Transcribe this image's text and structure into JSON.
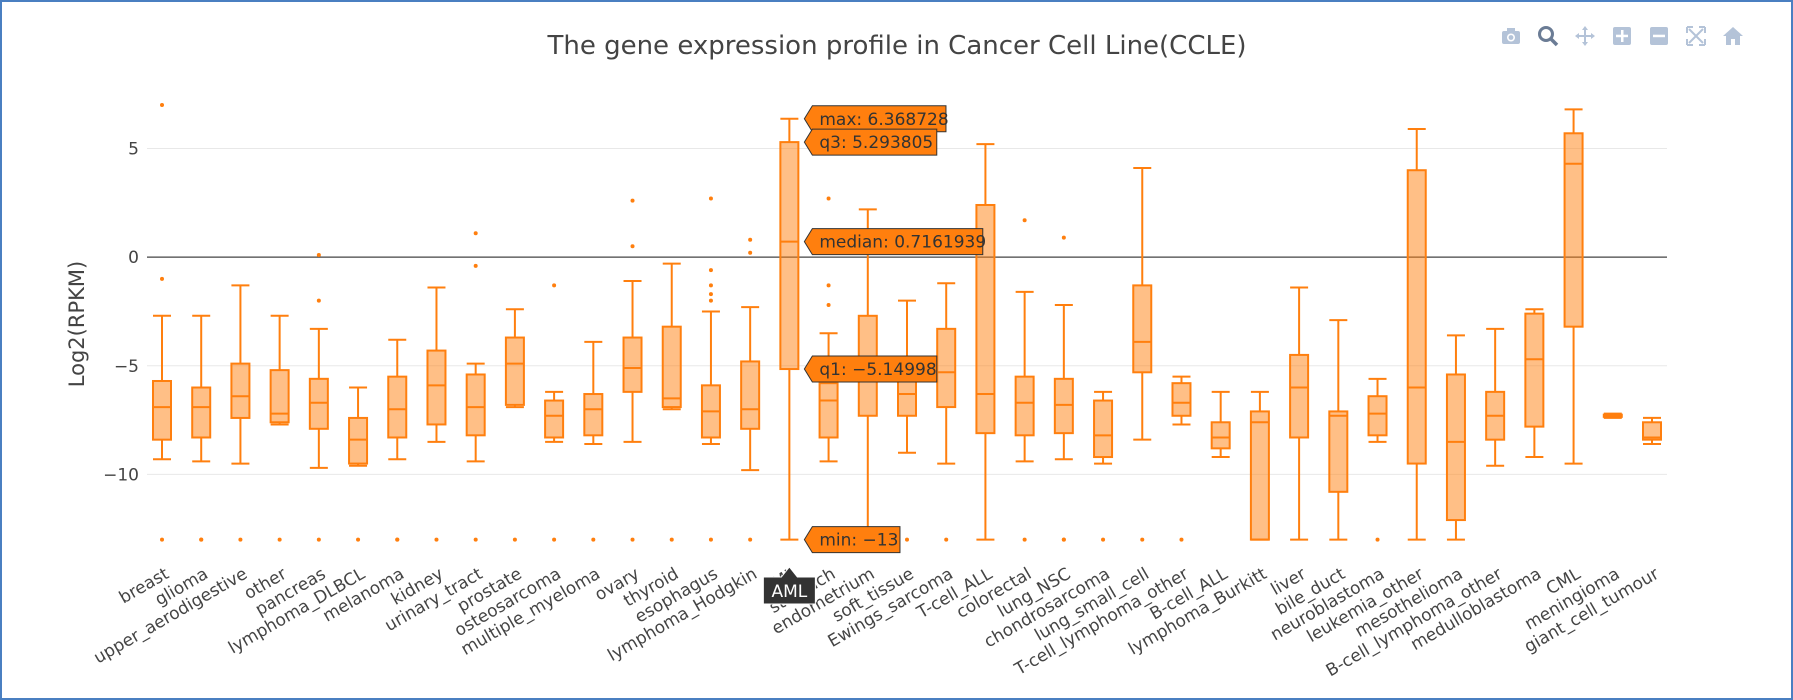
{
  "chart_data": {
    "type": "box",
    "title": "The gene expression profile in Cancer Cell Line(CCLE)",
    "xlabel": "",
    "ylabel": "Log2(RPKM)",
    "ylim": [
      -13.8,
      7.6
    ],
    "yticks": [
      -10,
      -5,
      0,
      5
    ],
    "ytick_labels": [
      "−10",
      "−5",
      "0",
      "5"
    ],
    "grid": true,
    "color": "#ff7f0e",
    "categories": [
      "breast",
      "glioma",
      "upper_aerodigestive",
      "other",
      "pancreas",
      "lymphoma_DLBCL",
      "melanoma",
      "kidney",
      "urinary_tract",
      "prostate",
      "osteosarcoma",
      "multiple_myeloma",
      "ovary",
      "thyroid",
      "esophagus",
      "lymphoma_Hodgkin",
      "AML",
      "stomach",
      "endometrium",
      "soft_tissue",
      "Ewings_sarcoma",
      "T-cell_ALL",
      "colorectal",
      "lung_NSC",
      "chondrosarcoma",
      "lung_small_cell",
      "T-cell_lymphoma_other",
      "B-cell_ALL",
      "lymphoma_Burkitt",
      "liver",
      "bile_duct",
      "neuroblastoma",
      "leukemia_other",
      "mesothelioma",
      "B-cell_lymphoma_other",
      "medulloblastoma",
      "CML",
      "meningioma",
      "giant_cell_tumour"
    ],
    "boxes": [
      {
        "min": -9.3,
        "q1": -8.4,
        "median": -6.9,
        "q3": -5.7,
        "max": -2.7,
        "outliers": [
          7.0,
          -1.0,
          -13.0
        ]
      },
      {
        "min": -9.4,
        "q1": -8.3,
        "median": -6.9,
        "q3": -6.0,
        "max": -2.7,
        "outliers": [
          -13.0,
          -13.0
        ]
      },
      {
        "min": -9.5,
        "q1": -7.4,
        "median": -6.4,
        "q3": -4.9,
        "max": -1.3,
        "outliers": [
          -13.0
        ]
      },
      {
        "min": -7.7,
        "q1": -7.6,
        "median": -7.2,
        "q3": -5.2,
        "max": -2.7,
        "outliers": [
          -13.0
        ]
      },
      {
        "min": -9.7,
        "q1": -7.9,
        "median": -6.7,
        "q3": -5.6,
        "max": -3.3,
        "outliers": [
          0.1,
          -2.0,
          -13.0
        ]
      },
      {
        "min": -9.6,
        "q1": -9.5,
        "median": -8.4,
        "q3": -7.4,
        "max": -6.0,
        "outliers": [
          -13.0
        ]
      },
      {
        "min": -9.3,
        "q1": -8.3,
        "median": -7.0,
        "q3": -5.5,
        "max": -3.8,
        "outliers": [
          -13.0,
          -13.0
        ]
      },
      {
        "min": -8.5,
        "q1": -7.7,
        "median": -5.9,
        "q3": -4.3,
        "max": -1.4,
        "outliers": [
          -13.0
        ]
      },
      {
        "min": -9.4,
        "q1": -8.2,
        "median": -6.9,
        "q3": -5.4,
        "max": -4.9,
        "outliers": [
          1.1,
          -0.4,
          -13.0
        ]
      },
      {
        "min": -6.9,
        "q1": -6.8,
        "median": -4.9,
        "q3": -3.7,
        "max": -2.4,
        "outliers": [
          -13.0
        ]
      },
      {
        "min": -8.5,
        "q1": -8.3,
        "median": -7.3,
        "q3": -6.6,
        "max": -6.2,
        "outliers": [
          -1.3,
          -13.0
        ]
      },
      {
        "min": -8.6,
        "q1": -8.2,
        "median": -7.0,
        "q3": -6.3,
        "max": -3.9,
        "outliers": [
          -13.0
        ]
      },
      {
        "min": -8.5,
        "q1": -6.2,
        "median": -5.1,
        "q3": -3.7,
        "max": -1.1,
        "outliers": [
          2.6,
          0.5,
          -13.0
        ]
      },
      {
        "min": -7.0,
        "q1": -6.9,
        "median": -6.5,
        "q3": -3.2,
        "max": -0.3,
        "outliers": [
          -13.0
        ]
      },
      {
        "min": -8.6,
        "q1": -8.3,
        "median": -7.1,
        "q3": -5.9,
        "max": -2.5,
        "outliers": [
          2.7,
          -0.6,
          -1.3,
          -1.7,
          -2.0,
          -13.0
        ]
      },
      {
        "min": -9.8,
        "q1": -7.9,
        "median": -7.0,
        "q3": -4.8,
        "max": -2.3,
        "outliers": [
          0.8,
          0.2,
          -13.0
        ]
      },
      {
        "min": -13.0,
        "q1": -5.14998,
        "median": 0.7161939,
        "q3": 5.293805,
        "max": 6.368728,
        "outliers": []
      },
      {
        "min": -9.4,
        "q1": -8.3,
        "median": -6.6,
        "q3": -5.8,
        "max": -3.5,
        "outliers": [
          2.7,
          0.2,
          -1.3,
          -2.2,
          -13.0
        ]
      },
      {
        "min": -13.0,
        "q1": -7.3,
        "median": -5.5,
        "q3": -2.7,
        "max": 2.2,
        "outliers": []
      },
      {
        "min": -9.0,
        "q1": -7.3,
        "median": -6.3,
        "q3": -5.2,
        "max": -2.0,
        "outliers": [
          -13.0
        ]
      },
      {
        "min": -9.5,
        "q1": -6.9,
        "median": -5.3,
        "q3": -3.3,
        "max": -1.2,
        "outliers": [
          -13.0
        ]
      },
      {
        "min": -13.0,
        "q1": -8.1,
        "median": -6.3,
        "q3": 2.4,
        "max": 5.2,
        "outliers": []
      },
      {
        "min": -9.4,
        "q1": -8.2,
        "median": -6.7,
        "q3": -5.5,
        "max": -1.6,
        "outliers": [
          1.7,
          -13.0
        ]
      },
      {
        "min": -9.3,
        "q1": -8.1,
        "median": -6.8,
        "q3": -5.6,
        "max": -2.2,
        "outliers": [
          0.9,
          -13.0,
          -13.0
        ]
      },
      {
        "min": -9.5,
        "q1": -9.2,
        "median": -8.2,
        "q3": -6.6,
        "max": -6.2,
        "outliers": [
          -13.0
        ]
      },
      {
        "min": -8.4,
        "q1": -5.3,
        "median": -3.9,
        "q3": -1.3,
        "max": 4.1,
        "outliers": [
          -13.0
        ]
      },
      {
        "min": -7.7,
        "q1": -7.3,
        "median": -6.7,
        "q3": -5.8,
        "max": -5.5,
        "outliers": [
          -13.0
        ]
      },
      {
        "min": -9.2,
        "q1": -8.8,
        "median": -8.3,
        "q3": -7.6,
        "max": -6.2,
        "outliers": []
      },
      {
        "min": -13.0,
        "q1": -13.0,
        "median": -7.6,
        "q3": -7.1,
        "max": -6.2,
        "outliers": []
      },
      {
        "min": -13.0,
        "q1": -8.3,
        "median": -6.0,
        "q3": -4.5,
        "max": -1.4,
        "outliers": []
      },
      {
        "min": -13.0,
        "q1": -10.8,
        "median": -7.3,
        "q3": -7.1,
        "max": -2.9,
        "outliers": []
      },
      {
        "min": -8.5,
        "q1": -8.2,
        "median": -7.2,
        "q3": -6.4,
        "max": -5.6,
        "outliers": [
          -13.0
        ]
      },
      {
        "min": -13.0,
        "q1": -9.5,
        "median": -6.0,
        "q3": 4.0,
        "max": 5.9,
        "outliers": []
      },
      {
        "min": -13.0,
        "q1": -12.1,
        "median": -8.5,
        "q3": -5.4,
        "max": -3.6,
        "outliers": []
      },
      {
        "min": -9.6,
        "q1": -8.4,
        "median": -7.3,
        "q3": -6.2,
        "max": -3.3,
        "outliers": []
      },
      {
        "min": -9.2,
        "q1": -7.8,
        "median": -4.7,
        "q3": -2.6,
        "max": -2.4,
        "outliers": []
      },
      {
        "min": -9.5,
        "q1": -3.2,
        "median": 4.3,
        "q3": 5.7,
        "max": 6.8,
        "outliers": []
      },
      {
        "min": -7.4,
        "q1": -7.35,
        "median": -7.3,
        "q3": -7.25,
        "max": -7.2,
        "outliers": []
      },
      {
        "min": -8.6,
        "q1": -8.4,
        "median": -8.3,
        "q3": -7.6,
        "max": -7.4,
        "outliers": []
      }
    ],
    "hover": {
      "category_index": 16,
      "category_label": "AML",
      "labels": [
        {
          "key": "max",
          "text": "max: 6.368728"
        },
        {
          "key": "q3",
          "text": "q3: 5.293805"
        },
        {
          "key": "median",
          "text": "median: 0.7161939"
        },
        {
          "key": "q1",
          "text": "q1: −5.14998"
        },
        {
          "key": "min",
          "text": "min: −13"
        }
      ]
    }
  },
  "toolbar": {
    "buttons": [
      {
        "name": "camera-icon",
        "title": "Download plot as a png"
      },
      {
        "name": "zoom-icon",
        "title": "Zoom"
      },
      {
        "name": "pan-icon",
        "title": "Pan"
      },
      {
        "name": "zoom-in-icon",
        "title": "Zoom in"
      },
      {
        "name": "zoom-out-icon",
        "title": "Zoom out"
      },
      {
        "name": "autoscale-icon",
        "title": "Autoscale"
      },
      {
        "name": "reset-axes-icon",
        "title": "Reset axes"
      }
    ]
  }
}
